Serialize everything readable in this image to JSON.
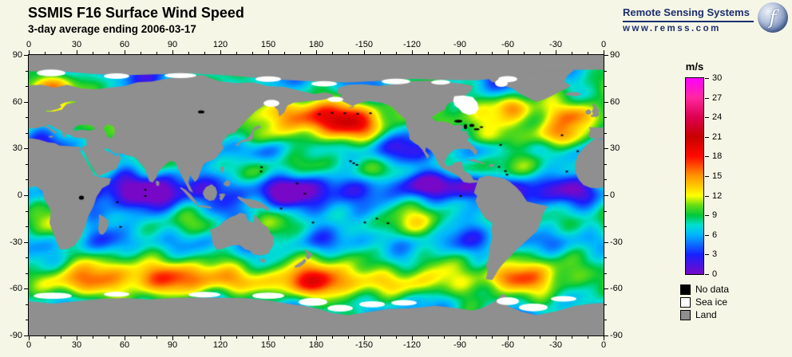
{
  "header": {
    "title": "SSMIS F16 Surface Wind Speed",
    "subtitle": "3-day average ending 2006-03-17",
    "brand": {
      "name": "Remote Sensing Systems",
      "url": "www.remss.com",
      "color": "#1c2f6e"
    }
  },
  "map": {
    "lon_ticks": [
      "0",
      "30",
      "60",
      "90",
      "120",
      "150",
      "180",
      "-150",
      "-120",
      "-90",
      "-60",
      "-30",
      "0"
    ],
    "lat_ticks": [
      "90",
      "60",
      "30",
      "0",
      "-30",
      "-60",
      "-90"
    ],
    "land_color": "#8f8f8f",
    "background_color": "#f6f6e6"
  },
  "colorbar": {
    "unit": "m/s",
    "min": 0,
    "max": 30,
    "ticks": [
      "30",
      "27",
      "24",
      "21",
      "18",
      "15",
      "12",
      "9",
      "6",
      "3",
      "0"
    ],
    "stops": [
      {
        "v": 0,
        "c": "#7808c8"
      },
      {
        "v": 3,
        "c": "#1820ff"
      },
      {
        "v": 6,
        "c": "#00b4ff"
      },
      {
        "v": 7.5,
        "c": "#00e0d0"
      },
      {
        "v": 9,
        "c": "#00c83c"
      },
      {
        "v": 10.5,
        "c": "#64dc14"
      },
      {
        "v": 12,
        "c": "#ffff00"
      },
      {
        "v": 13.5,
        "c": "#ffc800"
      },
      {
        "v": 15,
        "c": "#ff9600"
      },
      {
        "v": 16.5,
        "c": "#ff5000"
      },
      {
        "v": 18,
        "c": "#ff0a00"
      },
      {
        "v": 21,
        "c": "#c80000"
      },
      {
        "v": 24,
        "c": "#dc0050"
      },
      {
        "v": 27,
        "c": "#ff28a0"
      },
      {
        "v": 30,
        "c": "#ff00ff"
      }
    ]
  },
  "legend": [
    {
      "label": "No data",
      "color": "#000000"
    },
    {
      "label": "Sea ice",
      "color": "#ffffff"
    },
    {
      "label": "Land",
      "color": "#8f8f8f"
    }
  ],
  "chart_data": {
    "type": "heatmap",
    "title": "SSMIS F16 Surface Wind Speed",
    "subtitle": "3-day average ending 2006-03-17",
    "units": "m/s",
    "value_range": [
      0,
      30
    ],
    "colorbar_ticks": [
      30,
      27,
      24,
      21,
      18,
      15,
      12,
      9,
      6,
      3,
      0
    ],
    "x_ticks_deg": [
      0,
      30,
      60,
      90,
      120,
      150,
      180,
      -150,
      -120,
      -90,
      -60,
      -30,
      0
    ],
    "y_ticks_deg": [
      90,
      60,
      30,
      0,
      -30,
      -60,
      -90
    ],
    "legend_classes": [
      "No data",
      "Sea ice",
      "Land"
    ]
  }
}
